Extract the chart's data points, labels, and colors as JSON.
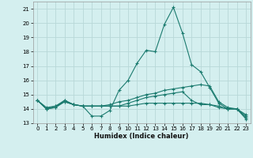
{
  "xlabel": "Humidex (Indice chaleur)",
  "background_color": "#d4efef",
  "grid_color": "#b8d8d8",
  "line_color": "#1a7a6e",
  "xlim": [
    -0.5,
    23.5
  ],
  "ylim": [
    13,
    21.5
  ],
  "yticks": [
    13,
    14,
    15,
    16,
    17,
    18,
    19,
    20,
    21
  ],
  "xticks": [
    0,
    1,
    2,
    3,
    4,
    5,
    6,
    7,
    8,
    9,
    10,
    11,
    12,
    13,
    14,
    15,
    16,
    17,
    18,
    19,
    20,
    21,
    22,
    23
  ],
  "lines": [
    {
      "x": [
        0,
        1,
        2,
        3,
        4,
        5,
        6,
        7,
        8,
        9,
        10,
        11,
        12,
        13,
        14,
        15,
        16,
        17,
        18,
        19,
        20,
        21,
        22,
        23
      ],
      "y": [
        14.6,
        14.0,
        14.2,
        14.6,
        14.3,
        14.2,
        13.5,
        13.5,
        13.9,
        15.3,
        16.0,
        17.2,
        18.1,
        18.0,
        19.9,
        21.1,
        19.3,
        17.1,
        16.6,
        15.5,
        14.4,
        14.0,
        14.0,
        13.3
      ]
    },
    {
      "x": [
        0,
        1,
        2,
        3,
        4,
        5,
        6,
        7,
        8,
        9,
        10,
        11,
        12,
        13,
        14,
        15,
        16,
        17,
        18,
        19,
        20,
        21,
        22,
        23
      ],
      "y": [
        14.6,
        14.1,
        14.2,
        14.5,
        14.3,
        14.2,
        14.2,
        14.2,
        14.3,
        14.5,
        14.6,
        14.8,
        15.0,
        15.1,
        15.3,
        15.4,
        15.5,
        15.6,
        15.7,
        15.6,
        14.5,
        14.1,
        14.0,
        13.6
      ]
    },
    {
      "x": [
        0,
        1,
        2,
        3,
        4,
        5,
        6,
        7,
        8,
        9,
        10,
        11,
        12,
        13,
        14,
        15,
        16,
        17,
        18,
        19,
        20,
        21,
        22,
        23
      ],
      "y": [
        14.6,
        14.0,
        14.1,
        14.5,
        14.3,
        14.2,
        14.2,
        14.2,
        14.2,
        14.2,
        14.2,
        14.3,
        14.4,
        14.4,
        14.4,
        14.4,
        14.4,
        14.4,
        14.4,
        14.3,
        14.2,
        14.0,
        14.0,
        13.5
      ]
    },
    {
      "x": [
        0,
        1,
        2,
        3,
        4,
        5,
        6,
        7,
        8,
        9,
        10,
        11,
        12,
        13,
        14,
        15,
        16,
        17,
        18,
        19,
        20,
        21,
        22,
        23
      ],
      "y": [
        14.6,
        14.0,
        14.1,
        14.6,
        14.3,
        14.2,
        14.2,
        14.2,
        14.2,
        14.2,
        14.4,
        14.6,
        14.8,
        14.9,
        15.0,
        15.1,
        15.2,
        14.6,
        14.3,
        14.3,
        14.1,
        14.0,
        14.0,
        13.4
      ]
    }
  ]
}
